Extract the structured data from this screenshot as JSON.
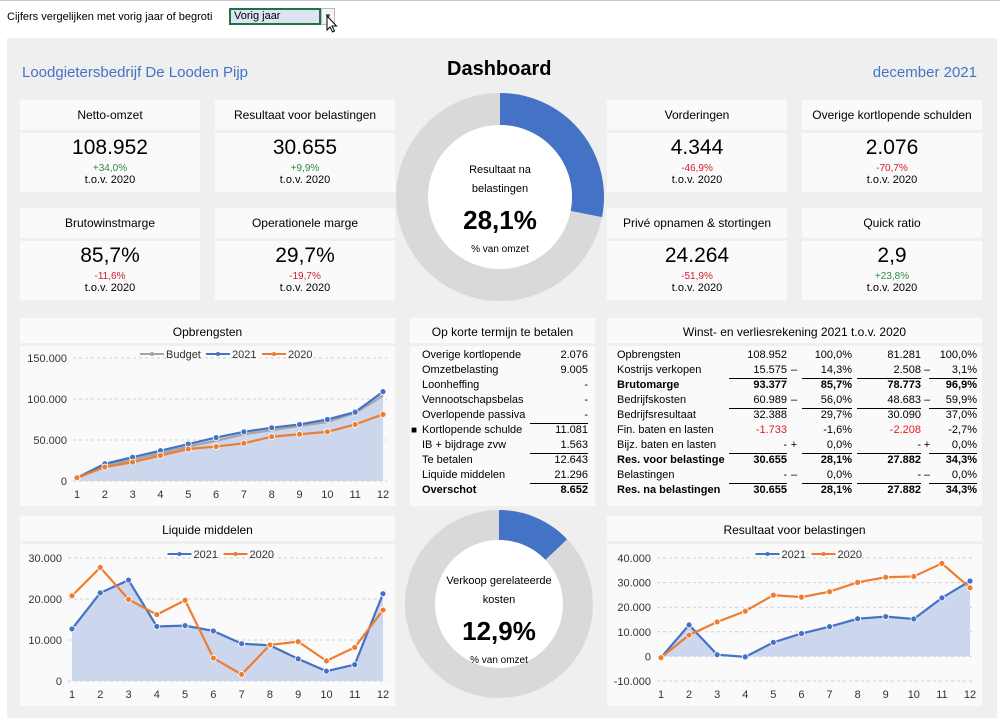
{
  "toolbar": {
    "label": "Cijfers vergelijken met vorig jaar of begroti",
    "selected_value": "Vorig jaar",
    "dropdown_icon": "chevron-down-icon"
  },
  "header": {
    "company": "Loodgietersbedrijf De Looden Pijp",
    "title": "Dashboard",
    "period": "december 2021"
  },
  "kpis": [
    {
      "title": "Netto-omzet",
      "value": "108.952",
      "change": "+34,0%",
      "trend": "pos",
      "compare": "t.o.v. 2020"
    },
    {
      "title": "Resultaat voor belastingen",
      "value": "30.655",
      "change": "+9,9%",
      "trend": "pos",
      "compare": "t.o.v. 2020"
    },
    {
      "title": "Brutowinstmarge",
      "value": "85,7%",
      "change": "-11,6%",
      "trend": "neg",
      "compare": "t.o.v. 2020"
    },
    {
      "title": "Operationele marge",
      "value": "29,7%",
      "change": "-19,7%",
      "trend": "neg",
      "compare": "t.o.v. 2020"
    },
    {
      "title": "Vorderingen",
      "value": "4.344",
      "change": "-46,9%",
      "trend": "neg",
      "compare": "t.o.v. 2020"
    },
    {
      "title": "Overige kortlopende schulden",
      "value": "2.076",
      "change": "-70,7%",
      "trend": "neg",
      "compare": "t.o.v. 2020"
    },
    {
      "title": "Privé opnamen & stortingen",
      "value": "24.264",
      "change": "-51,9%",
      "trend": "neg",
      "compare": "t.o.v. 2020"
    },
    {
      "title": "Quick ratio",
      "value": "2,9",
      "change": "+23,8%",
      "trend": "pos",
      "compare": "t.o.v. 2020"
    }
  ],
  "donuts": [
    {
      "label_line1": "Resultaat na",
      "label_line2": "belastingen",
      "value": "28,1%",
      "fraction": 0.281,
      "sub": "% van omzet"
    },
    {
      "label_line1": "Verkoop gerelateerde",
      "label_line2": "kosten",
      "value": "12,9%",
      "fraction": 0.129,
      "sub": "% van omzet"
    }
  ],
  "colors": {
    "accent": "#4472c4",
    "orange": "#ed7d31",
    "grey": "#a5a5a5",
    "track": "#d9d9d9",
    "area": "#ccd7ee",
    "positive": "#2e8b3d",
    "negative": "#d01c2a"
  },
  "korte_termijn": {
    "title": "Op korte termijn te betalen",
    "rows": [
      {
        "label": "Overige kortlopende",
        "value": "2.076"
      },
      {
        "label": "Omzetbelasting",
        "value": "9.005"
      },
      {
        "label": "Loonheffing",
        "value": "-"
      },
      {
        "label": "Vennootschapsbelas",
        "value": "-"
      },
      {
        "label": "Overlopende passiva",
        "value": "-"
      },
      {
        "label": "Kortlopende schulde",
        "value": "11.081",
        "marker": "■"
      },
      {
        "label": "IB + bijdrage zvw",
        "value": "1.563"
      },
      {
        "label": "Te betalen",
        "value": "12.643"
      },
      {
        "label": "Liquide middelen",
        "value": "21.296"
      },
      {
        "label": "Overschot",
        "value": "8.652",
        "bold": true
      }
    ]
  },
  "wv": {
    "title": "Winst- en verliesrekening 2021 t.o.v. 2020",
    "rows": [
      {
        "label": "Opbrengsten",
        "v2021": "108.952",
        "op1": "",
        "p2021": "100,0%",
        "v2020": "81.281",
        "op2": "",
        "p2020": "100,0%"
      },
      {
        "label": "Kostrijs verkopen",
        "v2021": "15.575",
        "op1": "–",
        "p2021": "14,3%",
        "v2020": "2.508",
        "op2": "–",
        "p2020": "3,1%"
      },
      {
        "label": "Brutomarge",
        "v2021": "93.377",
        "op1": "",
        "p2021": "85,7%",
        "v2020": "78.773",
        "op2": "",
        "p2020": "96,9%",
        "bold": true
      },
      {
        "label": "Bedrijfskosten",
        "v2021": "60.989",
        "op1": "–",
        "p2021": "56,0%",
        "v2020": "48.683",
        "op2": "–",
        "p2020": "59,9%"
      },
      {
        "label": "Bedrijfsresultaat",
        "v2021": "32.388",
        "op1": "",
        "p2021": "29,7%",
        "v2020": "30.090",
        "op2": "",
        "p2020": "37,0%"
      },
      {
        "label": "Fin. baten en lasten",
        "v2021": "-1.733",
        "op1": "",
        "p2021": "-1,6%",
        "v2020": "-2.208",
        "op2": "",
        "p2020": "-2,7%",
        "red": true
      },
      {
        "label": "Bijz. baten en lasten",
        "v2021": "-",
        "op1": "+",
        "p2021": "0,0%",
        "v2020": "-",
        "op2": "+",
        "p2020": "0,0%"
      },
      {
        "label": "Res. voor belastinge",
        "v2021": "30.655",
        "op1": "",
        "p2021": "28,1%",
        "v2020": "27.882",
        "op2": "",
        "p2020": "34,3%",
        "bold": true
      },
      {
        "label": "Belastingen",
        "v2021": "-",
        "op1": "–",
        "p2021": "0,0%",
        "v2020": "-",
        "op2": "–",
        "p2020": "0,0%"
      },
      {
        "label": "Res. na belastingen",
        "v2021": "30.655",
        "op1": "",
        "p2021": "28,1%",
        "v2020": "27.882",
        "op2": "",
        "p2020": "34,3%",
        "bold": true
      }
    ]
  },
  "chart_data": [
    {
      "type": "line",
      "title": "Opbrengsten",
      "categories": [
        "1",
        "2",
        "3",
        "4",
        "5",
        "6",
        "7",
        "8",
        "9",
        "10",
        "11",
        "12"
      ],
      "ylim": [
        0,
        150000
      ],
      "yticks": [
        0,
        50000,
        100000,
        150000
      ],
      "ytick_labels": [
        "0",
        "50.000",
        "100.000",
        "150.000"
      ],
      "legend": "top-center",
      "area_series": "2021",
      "series": [
        {
          "name": "Budget",
          "color": "#a5a5a5",
          "values": [
            3000,
            19000,
            26000,
            34000,
            42000,
            49000,
            57000,
            62000,
            67000,
            72000,
            83000,
            104000
          ]
        },
        {
          "name": "2021",
          "color": "#4472c4",
          "values": [
            4000,
            21000,
            29000,
            37000,
            45000,
            53000,
            60000,
            65000,
            69000,
            75000,
            84000,
            108952
          ]
        },
        {
          "name": "2020",
          "color": "#ed7d31",
          "values": [
            4000,
            17000,
            23000,
            31000,
            39000,
            42000,
            46000,
            54000,
            57000,
            60000,
            69000,
            81281
          ]
        }
      ]
    },
    {
      "type": "line",
      "title": "Liquide middelen",
      "categories": [
        "1",
        "2",
        "3",
        "4",
        "5",
        "6",
        "7",
        "8",
        "9",
        "10",
        "11",
        "12"
      ],
      "ylim": [
        0,
        30000
      ],
      "yticks": [
        0,
        10000,
        20000,
        30000
      ],
      "ytick_labels": [
        "0",
        "10.000",
        "20.000",
        "30.000"
      ],
      "legend": "top-center",
      "area_series": "2021",
      "series": [
        {
          "name": "2021",
          "color": "#4472c4",
          "values": [
            12700,
            21500,
            24600,
            13300,
            13500,
            12200,
            9100,
            8700,
            5400,
            2400,
            4000,
            21296
          ]
        },
        {
          "name": "2020",
          "color": "#ed7d31",
          "values": [
            20800,
            27700,
            19900,
            16200,
            19700,
            5600,
            1600,
            8800,
            9600,
            4900,
            8200,
            17300
          ]
        }
      ]
    },
    {
      "type": "line",
      "title": "Resultaat voor belastingen",
      "categories": [
        "1",
        "2",
        "3",
        "4",
        "5",
        "6",
        "7",
        "8",
        "9",
        "10",
        "11",
        "12"
      ],
      "ylim": [
        -10000,
        40000
      ],
      "yticks": [
        -10000,
        0,
        10000,
        20000,
        30000,
        40000
      ],
      "ytick_labels": [
        "-10.000",
        "0",
        "10.000",
        "20.000",
        "30.000",
        "40.000"
      ],
      "legend": "top-center",
      "area_series": "2021",
      "series": [
        {
          "name": "2021",
          "color": "#4472c4",
          "values": [
            -500,
            12800,
            700,
            -200,
            5700,
            9300,
            12100,
            15300,
            16200,
            15200,
            23800,
            30655
          ]
        },
        {
          "name": "2020",
          "color": "#ed7d31",
          "values": [
            -500,
            8700,
            14000,
            18400,
            24900,
            24100,
            26300,
            30100,
            32200,
            32500,
            37800,
            27882
          ]
        }
      ]
    }
  ]
}
